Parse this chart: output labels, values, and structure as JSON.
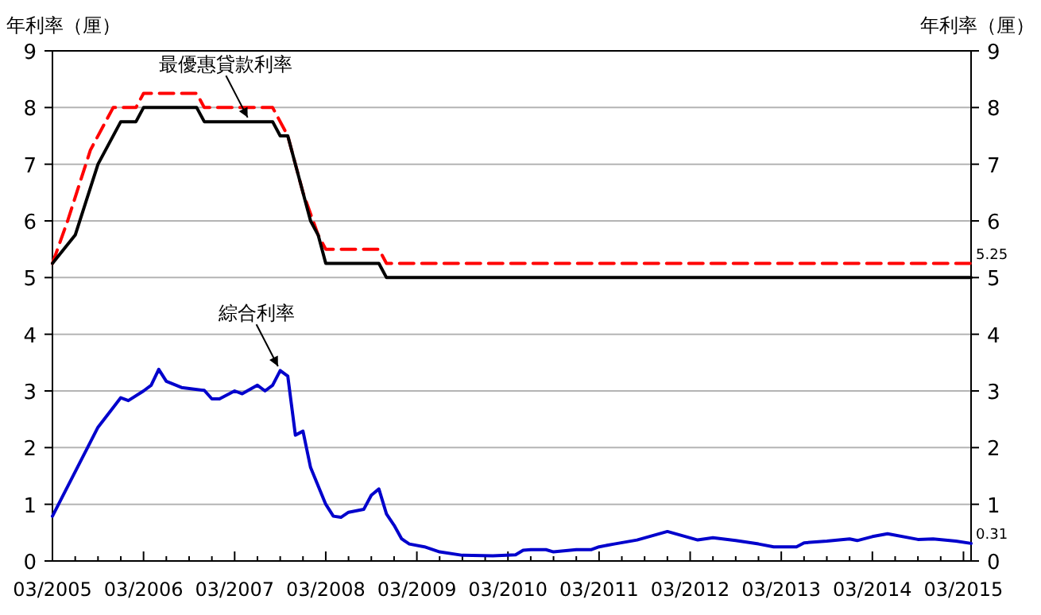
{
  "chart_data": {
    "type": "line",
    "ylabel": "年利率（厘）",
    "y2label": "年利率（厘）",
    "xlim": [
      "2005-03",
      "2015-04"
    ],
    "xticks": [
      {
        "value": "2005-03",
        "label": "03/2005"
      },
      {
        "value": "2005-06",
        "label": null
      },
      {
        "value": "2005-09",
        "label": null
      },
      {
        "value": "2005-12",
        "label": null
      },
      {
        "value": "2006-03",
        "label": "03/2006"
      },
      {
        "value": "2006-06",
        "label": null
      },
      {
        "value": "2006-09",
        "label": null
      },
      {
        "value": "2006-12",
        "label": null
      },
      {
        "value": "2007-03",
        "label": "03/2007"
      },
      {
        "value": "2007-06",
        "label": null
      },
      {
        "value": "2007-09",
        "label": null
      },
      {
        "value": "2007-12",
        "label": null
      },
      {
        "value": "2008-03",
        "label": "03/2008"
      },
      {
        "value": "2008-06",
        "label": null
      },
      {
        "value": "2008-09",
        "label": null
      },
      {
        "value": "2008-12",
        "label": null
      },
      {
        "value": "2009-03",
        "label": "03/2009"
      },
      {
        "value": "2009-06",
        "label": null
      },
      {
        "value": "2009-09",
        "label": null
      },
      {
        "value": "2009-12",
        "label": null
      },
      {
        "value": "2010-03",
        "label": "03/2010"
      },
      {
        "value": "2010-06",
        "label": null
      },
      {
        "value": "2010-09",
        "label": null
      },
      {
        "value": "2010-12",
        "label": null
      },
      {
        "value": "2011-03",
        "label": "03/2011"
      },
      {
        "value": "2011-06",
        "label": null
      },
      {
        "value": "2011-09",
        "label": null
      },
      {
        "value": "2011-12",
        "label": null
      },
      {
        "value": "2012-03",
        "label": "03/2012"
      },
      {
        "value": "2012-06",
        "label": null
      },
      {
        "value": "2012-09",
        "label": null
      },
      {
        "value": "2012-12",
        "label": null
      },
      {
        "value": "2013-03",
        "label": "03/2013"
      },
      {
        "value": "2013-06",
        "label": null
      },
      {
        "value": "2013-09",
        "label": null
      },
      {
        "value": "2013-12",
        "label": null
      },
      {
        "value": "2014-03",
        "label": "03/2014"
      },
      {
        "value": "2014-06",
        "label": null
      },
      {
        "value": "2014-09",
        "label": null
      },
      {
        "value": "2014-12",
        "label": null
      },
      {
        "value": "2015-03",
        "label": "03/2015"
      }
    ],
    "ylim": [
      0,
      9
    ],
    "yticks": [
      0,
      1,
      2,
      3,
      4,
      5,
      6,
      7,
      8,
      9
    ],
    "y2lim": [
      0,
      9
    ],
    "y2ticks": [
      0,
      1,
      2,
      3,
      4,
      5,
      6,
      7,
      8,
      9
    ],
    "grid": "y",
    "series": [
      {
        "color": "#ff0000",
        "line_style": "dashed",
        "x": [
          "2005-03",
          "2005-05",
          "2005-08",
          "2005-11",
          "2006-02",
          "2006-03",
          "2006-10",
          "2006-11",
          "2007-08",
          "2007-10",
          "2007-12",
          "2008-02",
          "2008-03",
          "2008-10",
          "2008-11",
          "2015-04"
        ],
        "values": [
          5.25,
          6.0,
          7.25,
          8.0,
          8.0,
          8.25,
          8.25,
          8.0,
          8.0,
          7.5,
          6.5,
          5.75,
          5.5,
          5.5,
          5.25,
          5.25
        ],
        "value_labels": [
          null,
          null,
          null,
          null,
          null,
          null,
          null,
          null,
          null,
          null,
          null,
          null,
          null,
          null,
          null,
          "5.25"
        ]
      },
      {
        "color": "#000000",
        "line_style": "solid",
        "x": [
          "2005-03",
          "2005-06",
          "2005-09",
          "2005-12",
          "2006-02",
          "2006-03",
          "2006-10",
          "2006-11",
          "2007-08",
          "2007-09",
          "2007-10",
          "2007-11",
          "2008-01",
          "2008-02",
          "2008-03",
          "2008-10",
          "2008-11",
          "2015-04"
        ],
        "values": [
          5.25,
          5.75,
          7.0,
          7.75,
          7.75,
          8.0,
          8.0,
          7.75,
          7.75,
          7.5,
          7.5,
          7.0,
          6.0,
          5.75,
          5.25,
          5.25,
          5.0,
          5.0
        ]
      },
      {
        "color": "#0000cc",
        "line_style": "solid",
        "x": [
          "2005-03",
          "2005-09",
          "2005-12",
          "2006-01",
          "2006-03",
          "2006-04",
          "2006-05",
          "2006-06",
          "2006-08",
          "2006-11",
          "2006-12",
          "2007-01",
          "2007-03",
          "2007-04",
          "2007-06",
          "2007-07",
          "2007-08",
          "2007-09",
          "2007-10",
          "2007-11",
          "2007-12",
          "2008-01",
          "2008-03",
          "2008-04",
          "2008-05",
          "2008-06",
          "2008-08",
          "2008-09",
          "2008-10",
          "2008-11",
          "2008-12",
          "2009-01",
          "2009-02",
          "2009-04",
          "2009-06",
          "2009-09",
          "2010-01",
          "2010-04",
          "2010-05",
          "2010-06",
          "2010-08",
          "2010-09",
          "2010-12",
          "2011-02",
          "2011-03",
          "2011-05",
          "2011-08",
          "2011-12",
          "2012-04",
          "2012-06",
          "2012-09",
          "2012-12",
          "2013-02",
          "2013-05",
          "2013-06",
          "2013-09",
          "2013-12",
          "2014-01",
          "2014-03",
          "2014-05",
          "2014-09",
          "2014-11",
          "2015-02",
          "2015-04"
        ],
        "values": [
          0.79,
          2.36,
          2.88,
          2.83,
          3.0,
          3.1,
          3.38,
          3.17,
          3.06,
          3.01,
          2.86,
          2.86,
          3.0,
          2.95,
          3.1,
          3.0,
          3.1,
          3.36,
          3.26,
          2.22,
          2.29,
          1.65,
          1.0,
          0.79,
          0.77,
          0.86,
          0.91,
          1.16,
          1.27,
          0.83,
          0.63,
          0.39,
          0.3,
          0.25,
          0.16,
          0.1,
          0.09,
          0.11,
          0.19,
          0.2,
          0.2,
          0.16,
          0.2,
          0.2,
          0.25,
          0.3,
          0.37,
          0.52,
          0.37,
          0.41,
          0.36,
          0.3,
          0.25,
          0.25,
          0.32,
          0.35,
          0.39,
          0.36,
          0.43,
          0.48,
          0.38,
          0.39,
          0.35,
          0.31
        ],
        "value_labels": [
          null,
          null,
          null,
          null,
          null,
          null,
          null,
          null,
          null,
          null,
          null,
          null,
          null,
          null,
          null,
          null,
          null,
          null,
          null,
          null,
          null,
          null,
          null,
          null,
          null,
          null,
          null,
          null,
          null,
          null,
          null,
          null,
          null,
          null,
          null,
          null,
          null,
          null,
          null,
          null,
          null,
          null,
          null,
          null,
          null,
          null,
          null,
          null,
          null,
          null,
          null,
          null,
          null,
          null,
          null,
          null,
          null,
          null,
          null,
          null,
          null,
          null,
          null,
          "0.31"
        ]
      }
    ],
    "annotations": [
      {
        "text": "最優惠貸款利率",
        "x": "2007-05",
        "y": 7.75
      },
      {
        "text": "綜合利率",
        "x": "2007-09",
        "y": 3.36
      }
    ]
  }
}
